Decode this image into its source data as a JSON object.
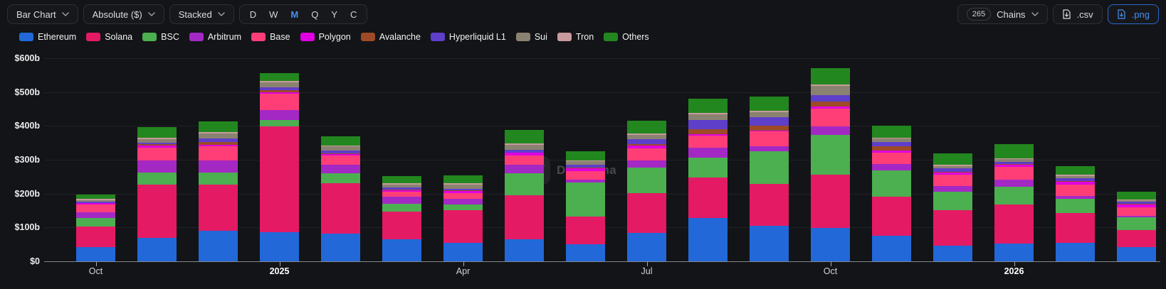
{
  "toolbar": {
    "chart_type": "Bar Chart",
    "denomination": "Absolute ($)",
    "stack_mode": "Stacked",
    "periods": [
      "D",
      "W",
      "M",
      "Q",
      "Y",
      "C"
    ],
    "selected_period": "M",
    "chains_count": "265",
    "chains_label": "Chains",
    "csv_label": ".csv",
    "png_label": ".png"
  },
  "watermark": "DefiLlama",
  "colors": {
    "accent": "#2172e5",
    "background": "#131417",
    "grid": "#202227",
    "axis": "#85868a",
    "selected_period_text": "#4a8ff5"
  },
  "chart_data": {
    "type": "bar",
    "stacked": true,
    "unit": "billions USD",
    "ylabel": "",
    "xlabel": "",
    "ylim": [
      0,
      600
    ],
    "grid": true,
    "legend_position": "top",
    "yticks": [
      {
        "v": 0,
        "label": "$0"
      },
      {
        "v": 100,
        "label": "$100b"
      },
      {
        "v": 200,
        "label": "$200b"
      },
      {
        "v": 300,
        "label": "$300b"
      },
      {
        "v": 400,
        "label": "$400b"
      },
      {
        "v": 500,
        "label": "$500b"
      },
      {
        "v": 600,
        "label": "$600b"
      }
    ],
    "x": [
      "Oct 2024",
      "Nov 2024",
      "Dec 2024",
      "Jan 2025",
      "Feb 2025",
      "Mar 2025",
      "Apr 2025",
      "May 2025",
      "Jun 2025",
      "Jul 2025",
      "Aug 2025",
      "Sep 2025",
      "Oct 2025",
      "Nov 2025",
      "Dec 2025",
      "Jan 2026",
      "Feb 2026",
      "Mar 2026"
    ],
    "xticks": [
      {
        "i": 0,
        "label": "Oct",
        "bold": false
      },
      {
        "i": 3,
        "label": "2025",
        "bold": true
      },
      {
        "i": 6,
        "label": "Apr",
        "bold": false
      },
      {
        "i": 9,
        "label": "Jul",
        "bold": false
      },
      {
        "i": 12,
        "label": "Oct",
        "bold": false
      },
      {
        "i": 15,
        "label": "2026",
        "bold": true
      }
    ],
    "series": [
      {
        "name": "Ethereum",
        "color": "#2268d9",
        "values": [
          42,
          70,
          91,
          85,
          82,
          65,
          54,
          64,
          50,
          84,
          129,
          104,
          98,
          76,
          47,
          52,
          55,
          43
        ]
      },
      {
        "name": "Solana",
        "color": "#e41a64",
        "values": [
          61,
          157,
          136,
          314,
          148,
          81,
          98,
          132,
          83,
          118,
          119,
          125,
          158,
          114,
          103,
          116,
          88,
          50
        ]
      },
      {
        "name": "BSC",
        "color": "#4caf50",
        "values": [
          24,
          36,
          35,
          18,
          30,
          23,
          16,
          64,
          99,
          74,
          59,
          96,
          117,
          78,
          56,
          53,
          41,
          37
        ]
      },
      {
        "name": "Arbitrum",
        "color": "#a428c4",
        "values": [
          17,
          34,
          35,
          29,
          25,
          21,
          17,
          25,
          10,
          22,
          28,
          14,
          26,
          20,
          16,
          21,
          8,
          5
        ]
      },
      {
        "name": "Base",
        "color": "#ff3e78",
        "values": [
          23,
          38,
          43,
          49,
          27,
          15,
          16,
          28,
          25,
          36,
          37,
          44,
          53,
          34,
          33,
          36,
          34,
          25
        ]
      },
      {
        "name": "Polygon",
        "color": "#e000e0",
        "values": [
          4,
          8,
          5,
          5,
          5,
          4,
          6,
          7,
          7,
          7,
          4,
          3,
          6,
          5,
          7,
          8,
          8,
          8
        ]
      },
      {
        "name": "Avalanche",
        "color": "#9d4a26",
        "values": [
          2,
          3,
          7,
          6,
          2,
          2,
          2,
          2,
          2,
          5,
          14,
          14,
          15,
          12,
          2,
          2,
          3,
          2
        ]
      },
      {
        "name": "Hyperliquid L1",
        "color": "#5d3fc9",
        "values": [
          3,
          5,
          10,
          8,
          8,
          7,
          5,
          7,
          10,
          14,
          28,
          26,
          17,
          13,
          11,
          5,
          8,
          6
        ]
      },
      {
        "name": "Sui",
        "color": "#8a8270",
        "values": [
          5,
          9,
          15,
          14,
          12,
          8,
          13,
          16,
          9,
          13,
          17,
          15,
          29,
          11,
          7,
          9,
          7,
          4
        ]
      },
      {
        "name": "Tron",
        "color": "#c99a9e",
        "values": [
          3,
          4,
          5,
          5,
          4,
          5,
          3,
          3,
          3,
          4,
          3,
          3,
          4,
          3,
          3,
          3,
          3,
          2
        ]
      },
      {
        "name": "Others",
        "color": "#23871f",
        "values": [
          14,
          33,
          31,
          22,
          26,
          21,
          23,
          41,
          28,
          38,
          42,
          43,
          48,
          35,
          34,
          42,
          27,
          23
        ]
      }
    ]
  }
}
